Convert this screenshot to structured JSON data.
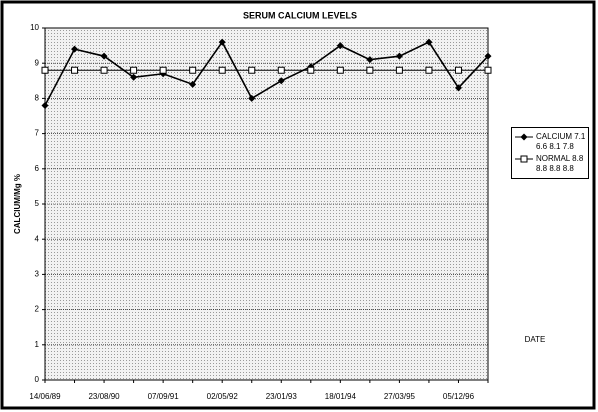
{
  "chart_data": {
    "type": "line",
    "title": "SERUM CALCIUM LEVELS",
    "x_label": "DATE",
    "y_label": "CALCIUM/Mg %",
    "categories": [
      "14/06/89",
      null,
      "23/08/90",
      null,
      "07/09/91",
      null,
      "02/05/92",
      null,
      "23/01/93",
      null,
      "18/01/94",
      null,
      "27/03/95",
      null,
      "05/12/96",
      null
    ],
    "series": [
      {
        "name": "CALCIUM 7.1 6.6 8.1 7.8",
        "color": "#000000",
        "marker": "diamond",
        "values": [
          7.8,
          9.4,
          9.2,
          8.6,
          8.7,
          8.4,
          9.6,
          8.0,
          8.5,
          8.9,
          9.5,
          9.1,
          9.2,
          9.6,
          8.3,
          9.2
        ]
      },
      {
        "name": "NORMAL 8.8 8.8 8.8 8.8",
        "color": "#000000",
        "marker": "square",
        "values": [
          8.8,
          8.8,
          8.8,
          8.8,
          8.8,
          8.8,
          8.8,
          8.8,
          8.8,
          8.8,
          8.8,
          8.8,
          8.8,
          8.8,
          8.8,
          8.8
        ]
      }
    ],
    "ylim": [
      0,
      10
    ],
    "yticks": [
      0,
      1,
      2,
      3,
      4,
      5,
      6,
      7,
      8,
      9,
      10
    ],
    "grid": true,
    "legend": "right"
  }
}
